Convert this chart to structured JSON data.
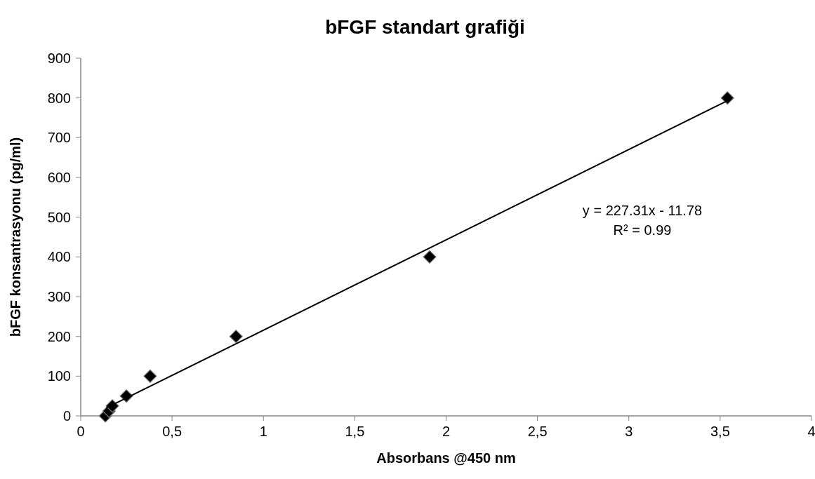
{
  "chart_data": {
    "type": "scatter",
    "title": "bFGF standart grafiği",
    "xlabel": "Absorbans @450 nm",
    "ylabel": "bFGF konsantrasyonu (pg/ml)",
    "xlim": [
      0,
      4
    ],
    "ylim": [
      0,
      900
    ],
    "xticks": [
      0,
      {
        "value": 0.5,
        "label": "0,5"
      },
      1,
      {
        "value": 1.5,
        "label": "1,5"
      },
      2,
      {
        "value": 2.5,
        "label": "2,5"
      },
      3,
      {
        "value": 3.5,
        "label": "3,5"
      },
      4
    ],
    "yticks": [
      0,
      100,
      200,
      300,
      400,
      500,
      600,
      700,
      800,
      900
    ],
    "grid": false,
    "marker": "diamond",
    "series": [
      {
        "color": "#000000",
        "x": [
          0.135,
          0.155,
          0.173,
          0.25,
          0.38,
          0.85,
          1.91,
          3.54
        ],
        "values": [
          0,
          12,
          25,
          50,
          100,
          200,
          400,
          800
        ]
      },
      {
        "type": "line",
        "color": "#000000",
        "line_style": "solid",
        "marker": "none",
        "x": [
          0.14,
          3.54
        ],
        "values": [
          20,
          793
        ]
      }
    ],
    "annotations": [
      "y = 227.31x - 11.78",
      "R² = 0.99"
    ]
  }
}
